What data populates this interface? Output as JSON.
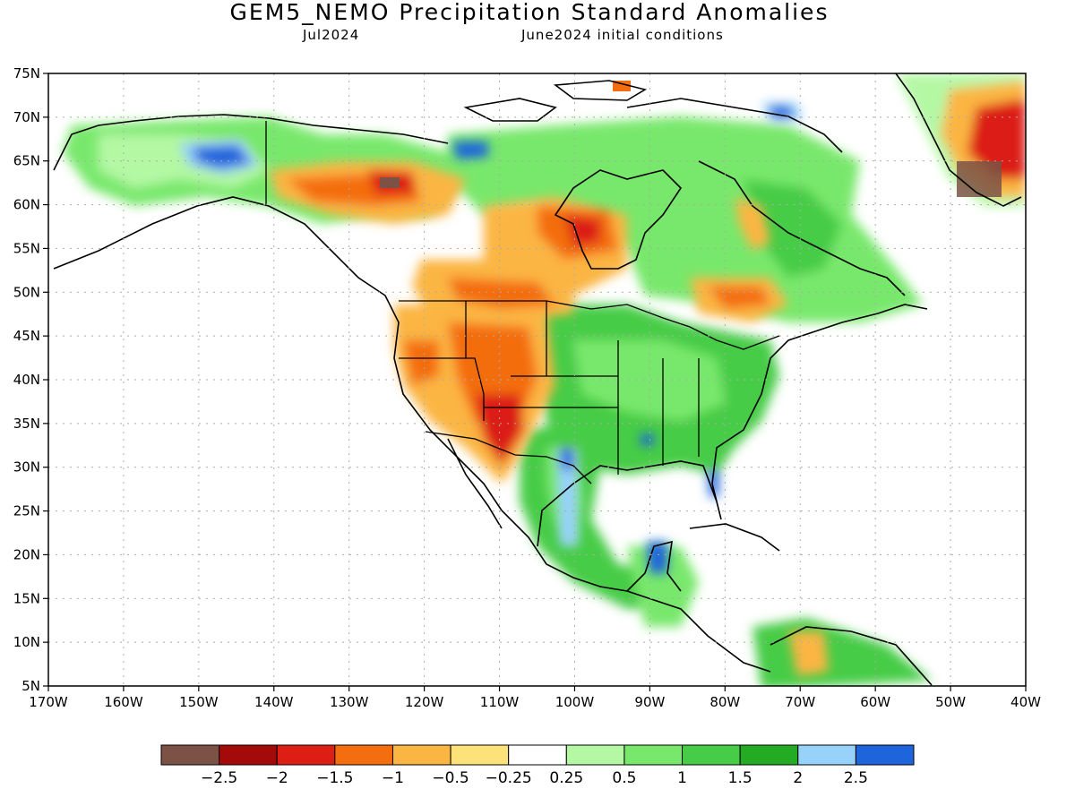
{
  "title": "GEM5_NEMO Precipitation Standard Anomalies",
  "subtitle_left": "Jul2024",
  "subtitle_right": "June2024 initial conditions",
  "lat_labels": [
    "75N",
    "70N",
    "65N",
    "60N",
    "55N",
    "50N",
    "45N",
    "40N",
    "35N",
    "30N",
    "25N",
    "20N",
    "15N",
    "10N",
    "5N"
  ],
  "lon_labels": [
    "170W",
    "160W",
    "150W",
    "140W",
    "130W",
    "120W",
    "110W",
    "100W",
    "90W",
    "80W",
    "70W",
    "60W",
    "50W",
    "40W"
  ],
  "colorbar": {
    "colors": [
      "#7b5245",
      "#a50a0a",
      "#dc1e14",
      "#f46d0e",
      "#fbb543",
      "#fde27a",
      "#ffffff",
      "#b4f8a4",
      "#78e86c",
      "#46cc46",
      "#23ac23",
      "#96d2fa",
      "#1e64dc"
    ],
    "labels": [
      "−2.5",
      "−2",
      "−1.5",
      "−1",
      "−0.5",
      "−0.25",
      "0.25",
      "0.5",
      "1",
      "1.5",
      "2",
      "2.5"
    ]
  }
}
